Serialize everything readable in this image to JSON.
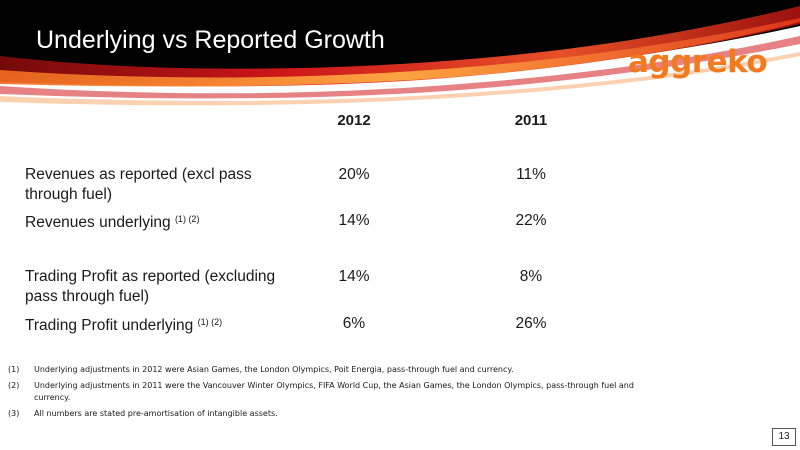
{
  "slide": {
    "title": "Underlying vs Reported Growth",
    "logo_text": "aggreko",
    "page_number": "13"
  },
  "table": {
    "columns": [
      "2012",
      "2011"
    ],
    "rows": [
      {
        "label": "Revenues as reported (excl pass through fuel)",
        "note": "",
        "v2012": "20%",
        "v2011": "11%"
      },
      {
        "label": "Revenues underlying",
        "note": "(1) (2)",
        "v2012": "14%",
        "v2011": "22%"
      },
      {
        "label": "Trading Profit as reported (excluding pass through fuel)",
        "note": "",
        "v2012": "14%",
        "v2011": "8%"
      },
      {
        "label": "Trading Profit underlying",
        "note": "(1) (2)",
        "v2012": "6%",
        "v2011": "26%"
      }
    ]
  },
  "footnotes": [
    {
      "num": "(1)",
      "text": "Underlying adjustments in 2012 were  Asian Games, the London Olympics, Poit Energia,  pass-through fuel and currency."
    },
    {
      "num": "(2)",
      "text": "Underlying adjustments in 2011 were the Vancouver Winter Olympics, FIFA World Cup, the Asian Games, the London Olympics, pass-through fuel and currency."
    },
    {
      "num": "(3)",
      "text": "All numbers are stated pre-amortisation of intangible assets."
    }
  ],
  "colors": {
    "header_background": "#000000",
    "swoosh_red": "#c8161d",
    "swoosh_orange": "#f47a20",
    "logo_orange": "#f47a20"
  }
}
